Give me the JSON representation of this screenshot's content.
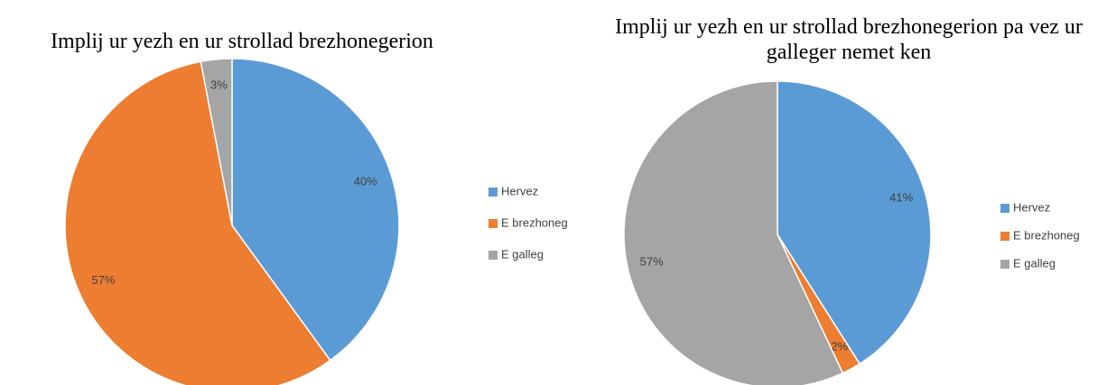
{
  "chart_data": [
    {
      "type": "pie",
      "title": "Implij ur yezh en ur strollad brezhonegerion",
      "categories": [
        "Hervez",
        "E brezhoneg",
        "E galleg"
      ],
      "values": [
        40,
        57,
        3
      ],
      "value_labels": [
        "40%",
        "57%",
        "3%"
      ],
      "colors": [
        "#5b9bd5",
        "#ed7d31",
        "#a5a5a5"
      ],
      "legend": "right"
    },
    {
      "type": "pie",
      "title": "Implij ur yezh en ur strollad brezhonegerion pa vez ur galleger nemet ken",
      "categories": [
        "Hervez",
        "E brezhoneg",
        "E galleg"
      ],
      "values": [
        41,
        2,
        57
      ],
      "value_labels": [
        "41%",
        "2%",
        "57%"
      ],
      "colors": [
        "#5b9bd5",
        "#ed7d31",
        "#a5a5a5"
      ],
      "legend": "right"
    }
  ]
}
